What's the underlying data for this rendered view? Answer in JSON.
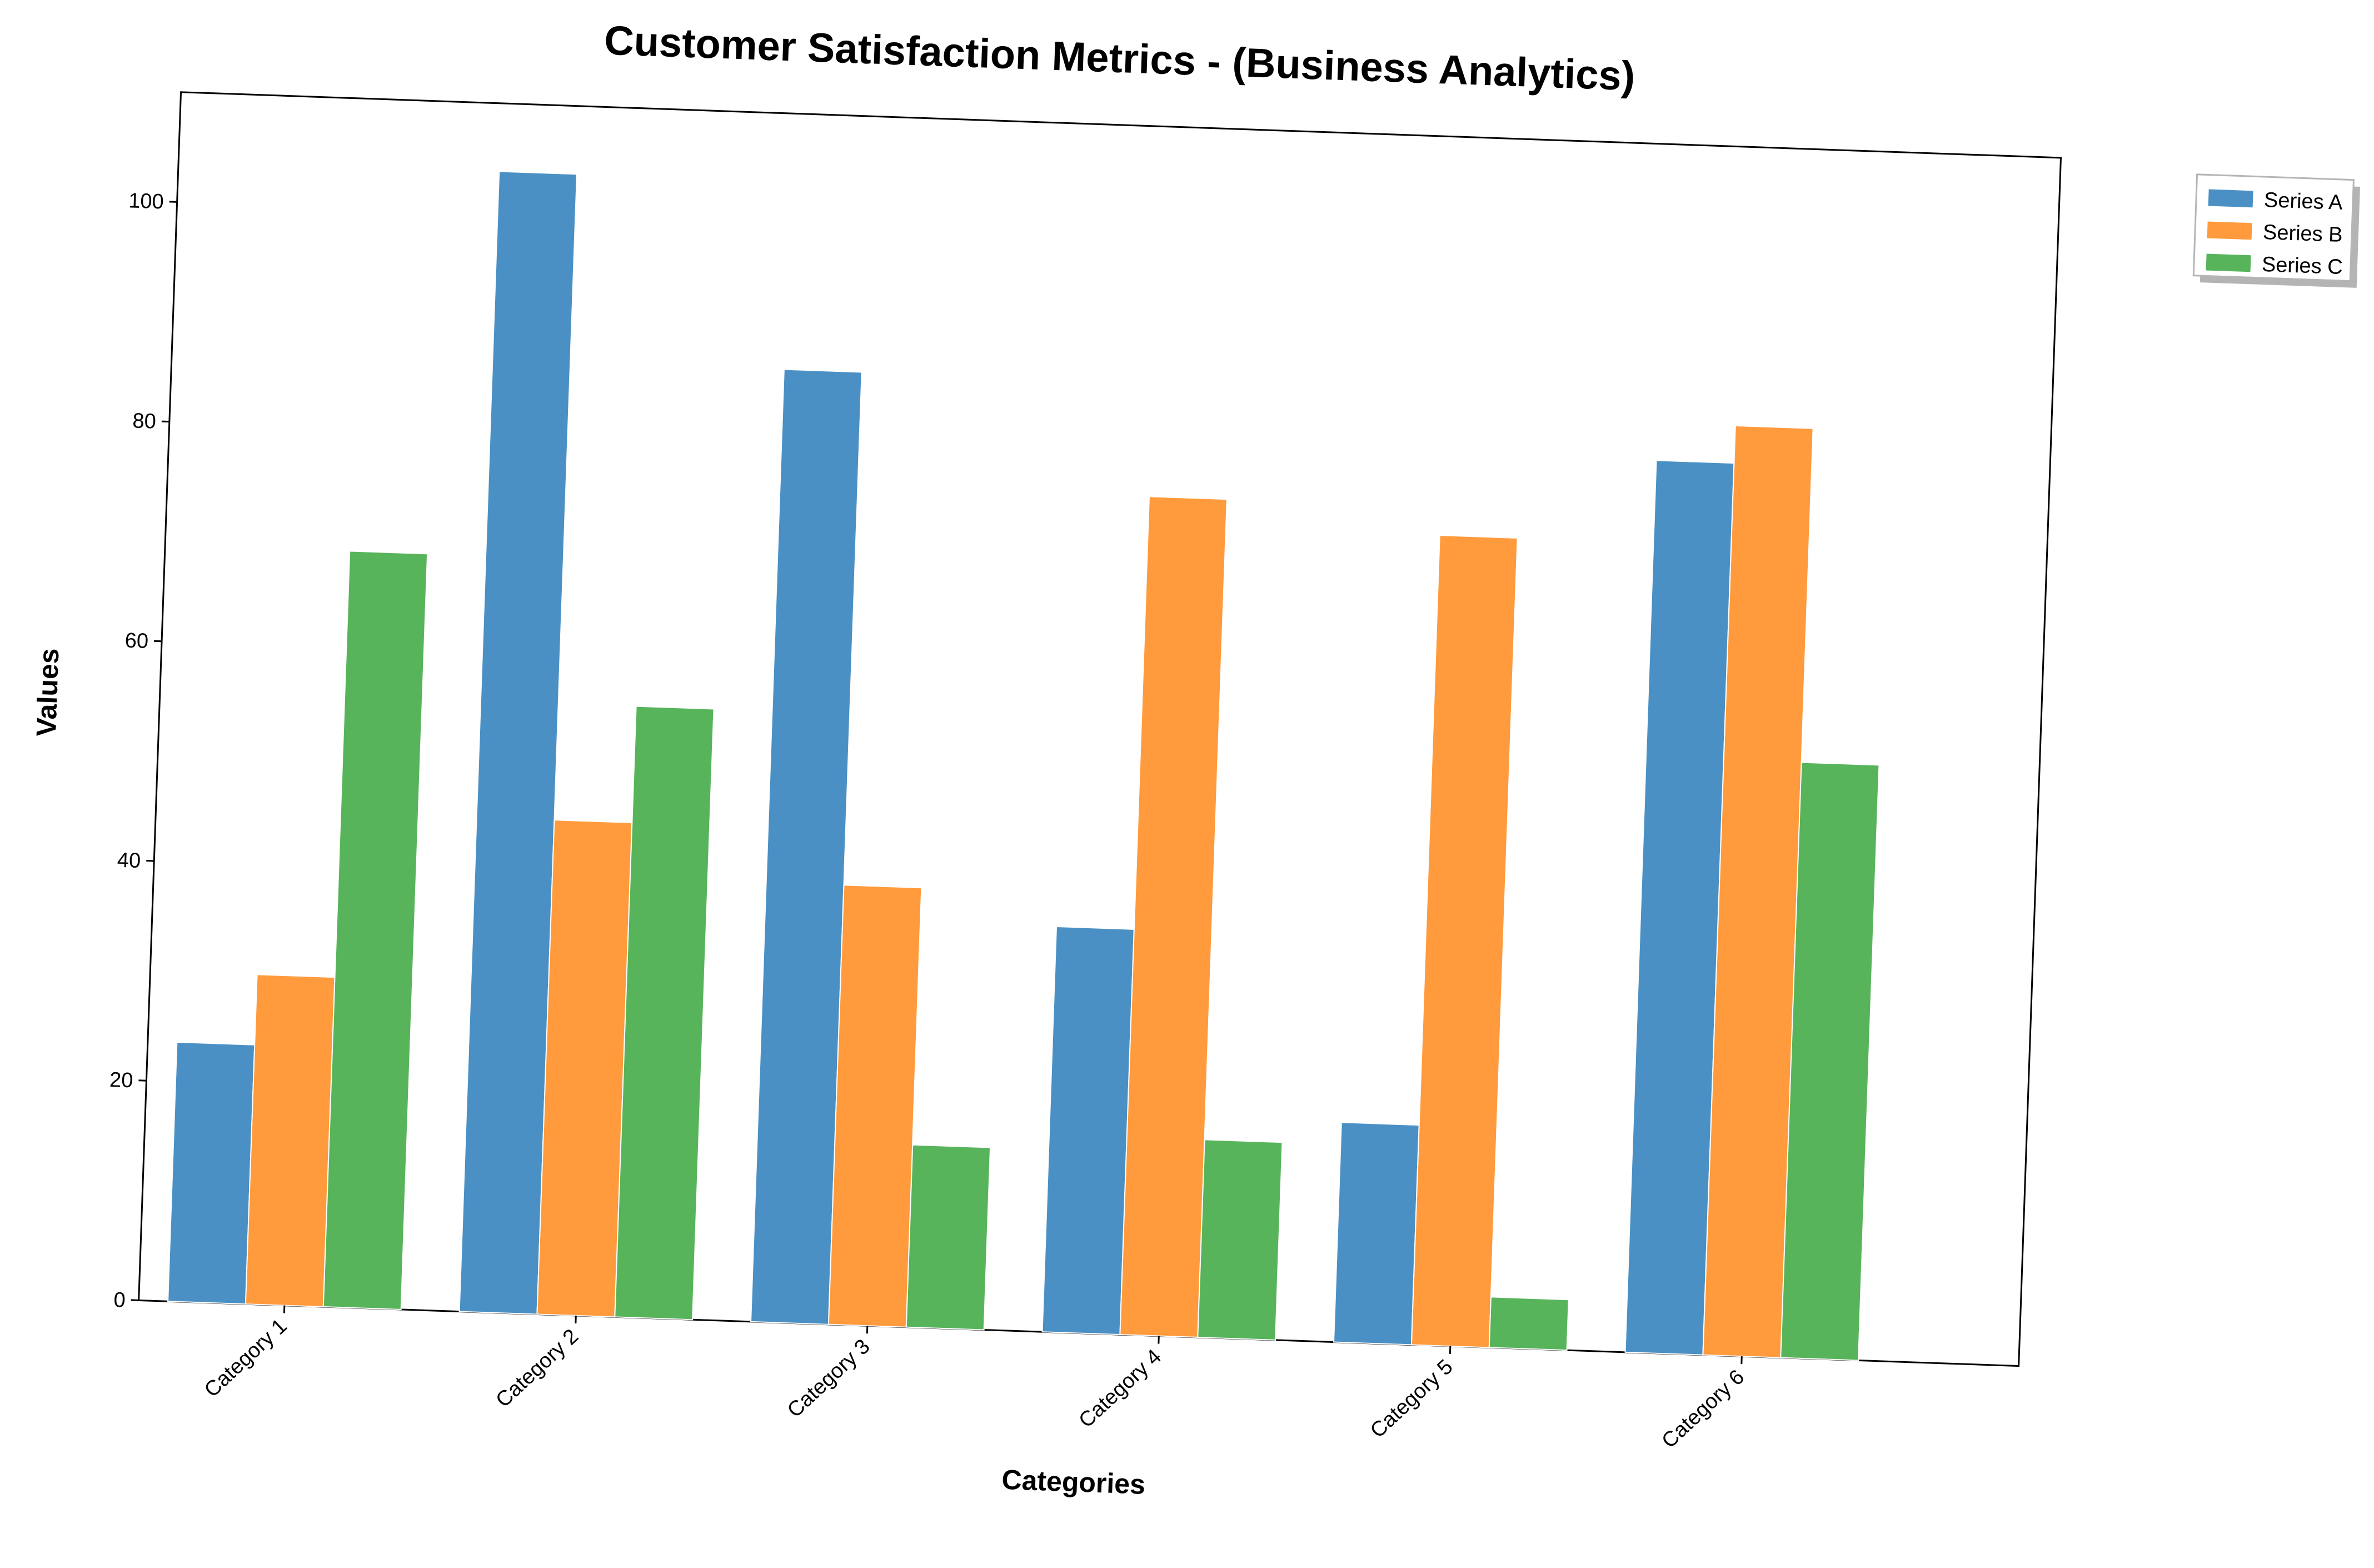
{
  "chart_data": {
    "type": "bar",
    "title": "Customer Satisfaction Metrics - (Business Analytics)",
    "xlabel": "Categories",
    "ylabel": "Values",
    "categories": [
      "Category 1",
      "Category 2",
      "Category 3",
      "Category 4",
      "Category 5",
      "Category 6"
    ],
    "series": [
      {
        "name": "Series A",
        "color": "#4a90c4",
        "values": [
          23.6,
          103.8,
          86.7,
          36.9,
          20.0,
          81.2
        ]
      },
      {
        "name": "Series B",
        "color": "#ff9a3d",
        "values": [
          30.0,
          45.0,
          40.0,
          76.3,
          73.7,
          84.6
        ]
      },
      {
        "name": "Series C",
        "color": "#57b45a",
        "values": [
          68.8,
          55.6,
          16.6,
          18.0,
          4.6,
          54.2
        ]
      }
    ],
    "ylim": [
      0,
      110
    ],
    "yticks": [
      0,
      20,
      40,
      60,
      80,
      100
    ],
    "grid": false,
    "legend_position": "top-right, outside plot area",
    "rotation_degrees": 2
  }
}
